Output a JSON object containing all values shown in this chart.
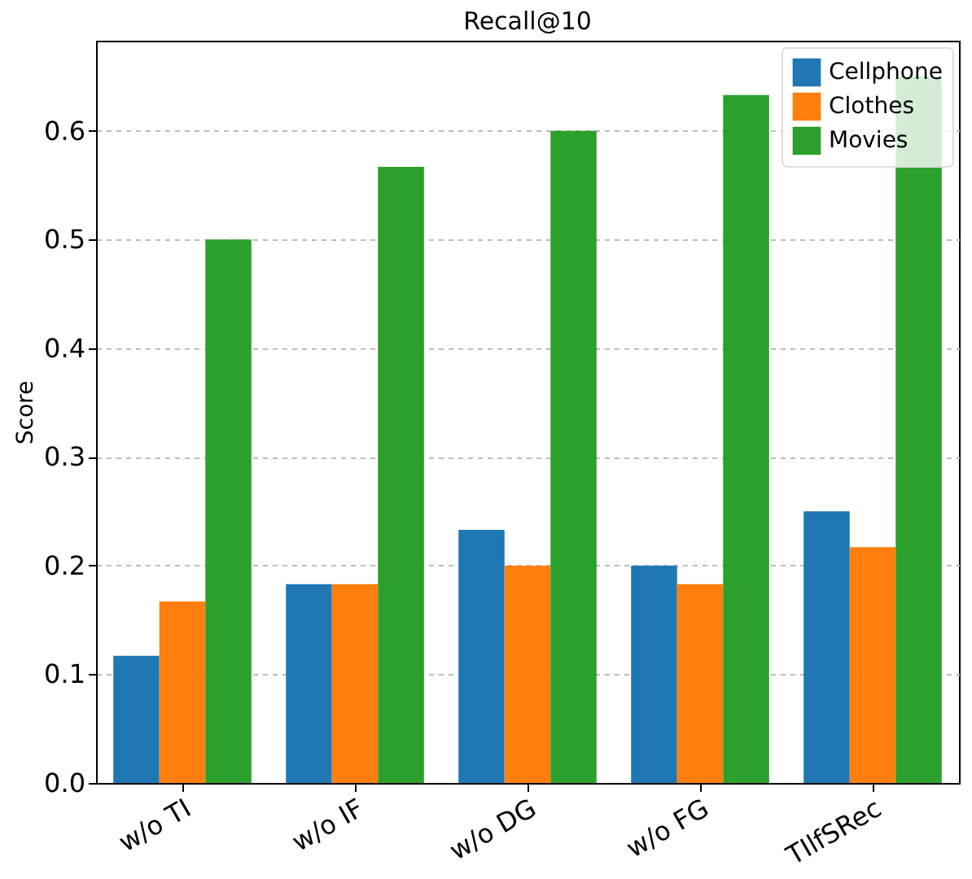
{
  "chart_data": {
    "type": "bar",
    "title": "Recall@10",
    "ylabel": "Score",
    "categories": [
      "w/o TI",
      "w/o IF",
      "w/o DG",
      "w/o FG",
      "TIlfSRec"
    ],
    "series": [
      {
        "name": "Cellphone",
        "color": "#1f77b4",
        "values": [
          0.117,
          0.183,
          0.233,
          0.2,
          0.25
        ]
      },
      {
        "name": "Clothes",
        "color": "#ff7f0e",
        "values": [
          0.167,
          0.183,
          0.2,
          0.183,
          0.217
        ]
      },
      {
        "name": "Movies",
        "color": "#2ca02c",
        "values": [
          0.5,
          0.567,
          0.6,
          0.633,
          0.65
        ]
      }
    ],
    "ylim": [
      0,
      0.683
    ],
    "yticks": [
      {
        "value": 0,
        "label": "0.0"
      },
      0.1,
      0.2,
      0.3,
      0.4,
      0.5,
      0.6
    ],
    "grid": "y",
    "legend": "top right"
  }
}
